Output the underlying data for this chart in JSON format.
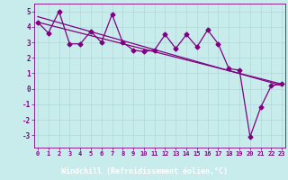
{
  "xlabel": "Windchill (Refroidissement éolien,°C)",
  "bg_color": "#c8ecec",
  "line_color": "#800080",
  "grid_color": "#b0d8d8",
  "xlabel_bg": "#800080",
  "xlabel_fg": "#ffffff",
  "x_data": [
    0,
    1,
    2,
    3,
    4,
    5,
    6,
    7,
    8,
    9,
    10,
    11,
    12,
    13,
    14,
    15,
    16,
    17,
    18,
    19,
    20,
    21,
    22,
    23
  ],
  "y_data": [
    4.3,
    3.6,
    5.0,
    2.9,
    2.9,
    3.7,
    3.0,
    4.8,
    3.0,
    2.5,
    2.4,
    2.5,
    3.5,
    2.6,
    3.5,
    2.7,
    3.8,
    2.9,
    1.3,
    1.2,
    -3.1,
    -1.2,
    0.2,
    0.3
  ],
  "ylim": [
    -3.8,
    5.5
  ],
  "xlim": [
    -0.3,
    23.3
  ],
  "yticks": [
    -3,
    -2,
    -1,
    0,
    1,
    2,
    3,
    4,
    5
  ],
  "xticks": [
    0,
    1,
    2,
    3,
    4,
    5,
    6,
    7,
    8,
    9,
    10,
    11,
    12,
    13,
    14,
    15,
    16,
    17,
    18,
    19,
    20,
    21,
    22,
    23
  ],
  "marker": "D",
  "markersize": 2.5,
  "linewidth": 0.9
}
